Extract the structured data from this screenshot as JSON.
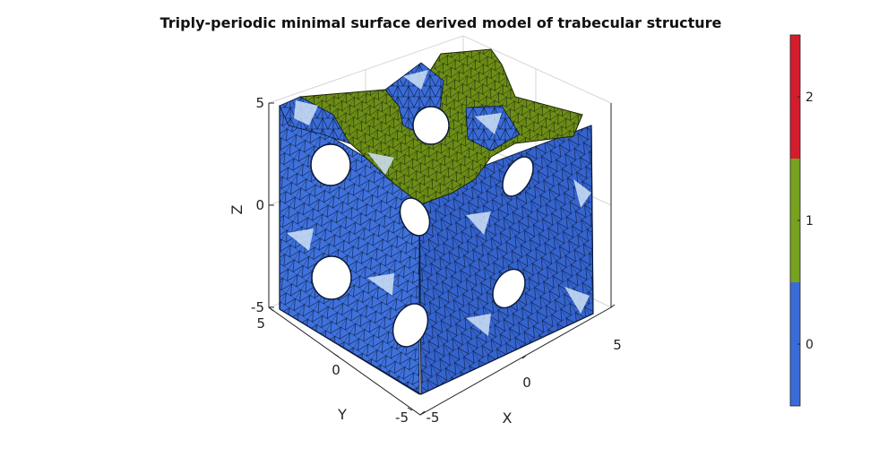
{
  "chart_data": {
    "type": "surface3d",
    "title": "Triply-periodic minimal surface derived model of trabecular structure",
    "axes": {
      "x": {
        "label": "X",
        "ticks": [
          "-5",
          "0",
          "5"
        ],
        "range": [
          -5,
          5
        ]
      },
      "y": {
        "label": "Y",
        "ticks": [
          "-5",
          "0",
          "5"
        ],
        "range": [
          -5,
          5
        ]
      },
      "z": {
        "label": "Z",
        "ticks": [
          "-5",
          "0",
          "5"
        ],
        "range": [
          -5,
          5
        ]
      }
    },
    "grid": true,
    "colorbar": {
      "position": "right",
      "ticks": [
        "0",
        "1",
        "2"
      ],
      "range": [
        -0.5,
        2.5
      ],
      "segments": [
        {
          "value": 0,
          "color": "#3a6cd9"
        },
        {
          "value": 1,
          "color": "#76a21e"
        },
        {
          "value": 2,
          "color": "#d41c2c"
        }
      ]
    },
    "surface_colors": {
      "boundary_surface": "#3a6cd9",
      "highlight": "#cfe2f7",
      "cap_faces": "#6e8f17",
      "mesh_edges": "#000000"
    }
  }
}
